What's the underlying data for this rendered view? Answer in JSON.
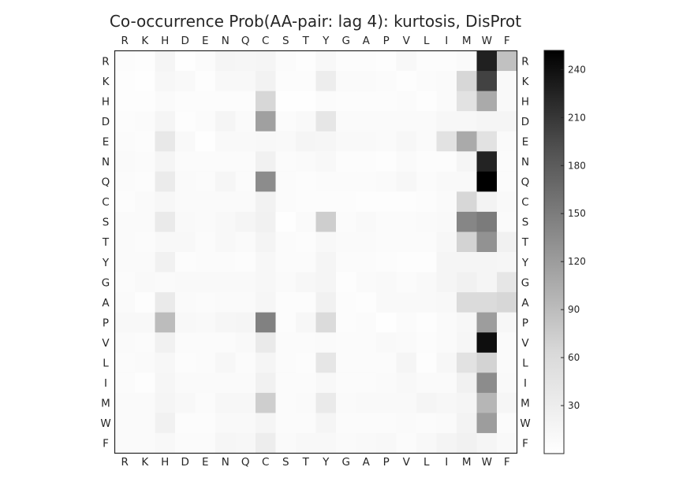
{
  "chart_data": {
    "type": "heatmap",
    "title": "Co-occurrence Prob(AA-pair: lag 4): kurtosis, DisProt",
    "x_labels": [
      "R",
      "K",
      "H",
      "D",
      "E",
      "N",
      "Q",
      "C",
      "S",
      "T",
      "Y",
      "G",
      "A",
      "P",
      "V",
      "L",
      "I",
      "M",
      "W",
      "F"
    ],
    "y_labels": [
      "R",
      "K",
      "H",
      "D",
      "E",
      "N",
      "Q",
      "C",
      "S",
      "T",
      "Y",
      "G",
      "A",
      "P",
      "V",
      "L",
      "I",
      "M",
      "W",
      "F"
    ],
    "colormap": "Greys",
    "vmin": 0,
    "vmax": 252,
    "colorbar_ticks": [
      30,
      60,
      90,
      120,
      150,
      180,
      210,
      240
    ],
    "values": [
      [
        6,
        5,
        20,
        3,
        8,
        22,
        18,
        22,
        8,
        5,
        14,
        7,
        7,
        5,
        14,
        6,
        6,
        10,
        225,
        90
      ],
      [
        5,
        3,
        16,
        12,
        5,
        14,
        14,
        28,
        6,
        6,
        36,
        10,
        10,
        8,
        4,
        8,
        10,
        65,
        200,
        12
      ],
      [
        5,
        5,
        10,
        6,
        6,
        7,
        7,
        65,
        3,
        3,
        9,
        6,
        6,
        6,
        8,
        5,
        10,
        50,
        110,
        12
      ],
      [
        7,
        8,
        20,
        4,
        8,
        22,
        10,
        118,
        8,
        12,
        45,
        10,
        10,
        10,
        10,
        10,
        16,
        16,
        20,
        22
      ],
      [
        8,
        6,
        42,
        12,
        2,
        12,
        12,
        14,
        12,
        22,
        18,
        12,
        12,
        10,
        16,
        10,
        50,
        110,
        50,
        10
      ],
      [
        10,
        8,
        20,
        8,
        8,
        8,
        8,
        30,
        8,
        10,
        14,
        6,
        6,
        4,
        10,
        6,
        6,
        20,
        222,
        8
      ],
      [
        8,
        6,
        38,
        10,
        8,
        18,
        8,
        135,
        8,
        6,
        8,
        8,
        8,
        10,
        16,
        8,
        12,
        12,
        252,
        8
      ],
      [
        6,
        10,
        16,
        10,
        10,
        10,
        10,
        28,
        8,
        6,
        6,
        6,
        4,
        4,
        4,
        6,
        10,
        65,
        25,
        12
      ],
      [
        10,
        10,
        40,
        12,
        10,
        14,
        20,
        30,
        2,
        10,
        75,
        8,
        12,
        8,
        8,
        10,
        12,
        140,
        150,
        10
      ],
      [
        10,
        8,
        14,
        14,
        8,
        14,
        10,
        24,
        8,
        6,
        14,
        10,
        10,
        8,
        8,
        8,
        16,
        70,
        130,
        30
      ],
      [
        10,
        10,
        30,
        6,
        8,
        8,
        6,
        16,
        8,
        8,
        22,
        8,
        8,
        6,
        4,
        4,
        20,
        20,
        20,
        18
      ],
      [
        8,
        12,
        10,
        12,
        12,
        12,
        12,
        16,
        10,
        16,
        20,
        4,
        10,
        12,
        8,
        12,
        20,
        30,
        20,
        45
      ],
      [
        10,
        4,
        40,
        10,
        8,
        10,
        10,
        18,
        6,
        6,
        30,
        6,
        4,
        12,
        12,
        12,
        14,
        60,
        60,
        65
      ],
      [
        14,
        14,
        95,
        14,
        12,
        18,
        22,
        145,
        6,
        16,
        60,
        6,
        8,
        2,
        8,
        4,
        10,
        16,
        120,
        16
      ],
      [
        10,
        8,
        30,
        8,
        8,
        8,
        12,
        40,
        8,
        8,
        10,
        8,
        8,
        12,
        10,
        6,
        10,
        18,
        240,
        10
      ],
      [
        8,
        10,
        16,
        6,
        8,
        16,
        8,
        20,
        8,
        6,
        45,
        8,
        8,
        8,
        20,
        4,
        16,
        50,
        70,
        10
      ],
      [
        8,
        5,
        18,
        10,
        10,
        10,
        10,
        30,
        8,
        8,
        14,
        8,
        8,
        10,
        14,
        10,
        10,
        30,
        135,
        12
      ],
      [
        10,
        10,
        20,
        14,
        8,
        16,
        16,
        75,
        8,
        10,
        40,
        10,
        12,
        12,
        12,
        20,
        16,
        20,
        100,
        18
      ],
      [
        10,
        10,
        30,
        6,
        6,
        12,
        12,
        20,
        8,
        8,
        20,
        8,
        8,
        8,
        10,
        8,
        10,
        25,
        120,
        8
      ],
      [
        10,
        10,
        14,
        8,
        8,
        18,
        16,
        36,
        10,
        14,
        14,
        10,
        12,
        14,
        8,
        14,
        24,
        30,
        20,
        12
      ]
    ]
  }
}
